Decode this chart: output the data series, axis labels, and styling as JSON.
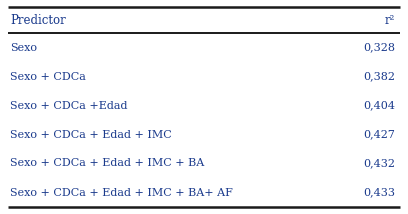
{
  "headers": [
    "Predictor",
    "r²"
  ],
  "rows": [
    [
      "Sexo",
      "0,328"
    ],
    [
      "Sexo + CDCa",
      "0,382"
    ],
    [
      "Sexo + CDCa +Edad",
      "0,404"
    ],
    [
      "Sexo + CDCa + Edad + IMC",
      "0,427"
    ],
    [
      "Sexo + CDCa + Edad + IMC + BA",
      "0,432"
    ],
    [
      "Sexo + CDCa + Edad + IMC + BA+ AF",
      "0,433"
    ]
  ],
  "bg_color": "#ffffff",
  "header_color": "#1a3a8c",
  "row_color": "#1a3a8c",
  "line_color": "#1a1a1a",
  "font_size_header": 8.5,
  "font_size_row": 8.0
}
